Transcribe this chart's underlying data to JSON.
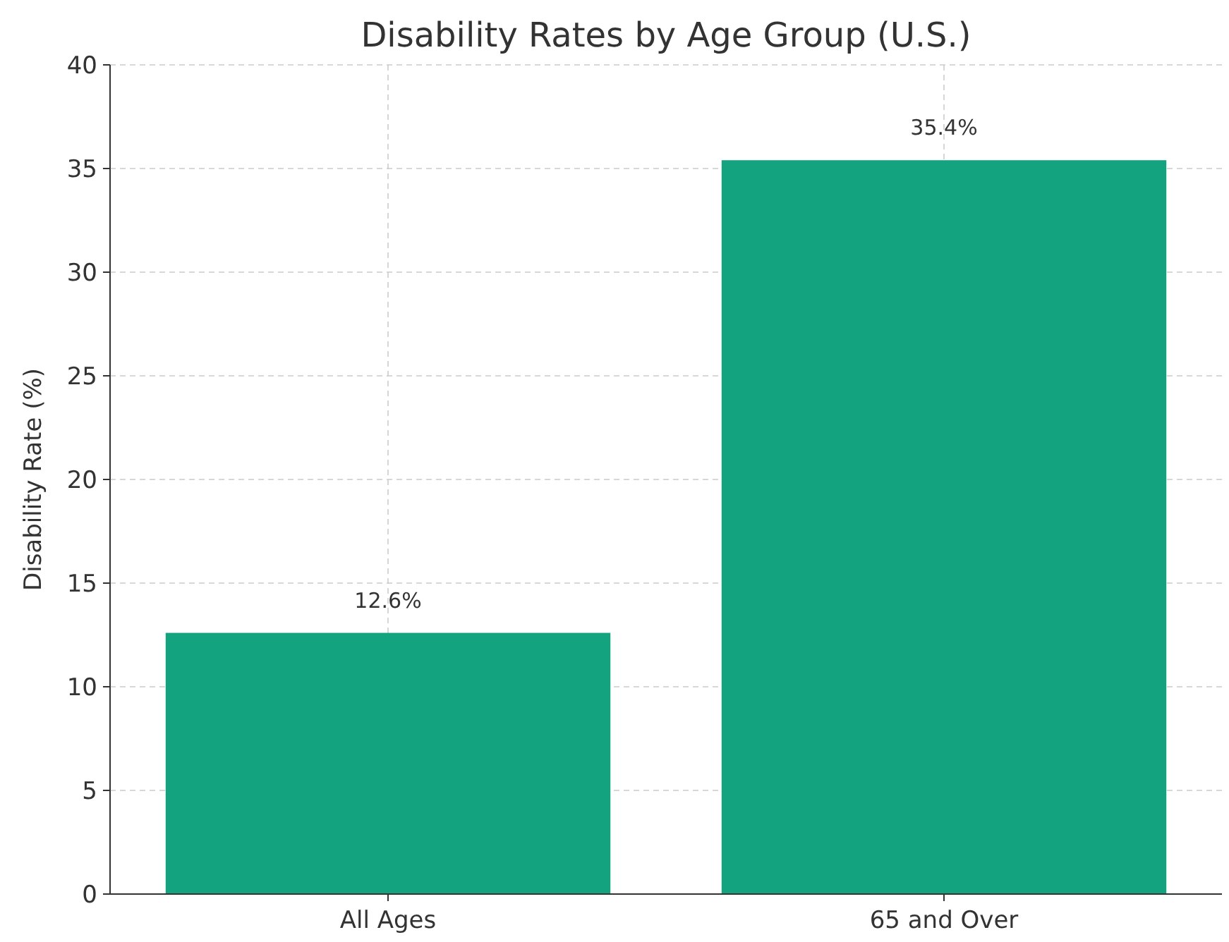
{
  "chart_data": {
    "type": "bar",
    "title": "Disability Rates by Age Group (U.S.)",
    "ylabel": "Disability Rate (%)",
    "categories": [
      "All Ages",
      "65 and Over"
    ],
    "values": [
      12.6,
      35.4
    ],
    "value_labels": [
      "12.6%",
      "35.4%"
    ],
    "color": "#13a37f",
    "ylim": [
      0,
      40
    ],
    "yticks": [
      0,
      5,
      10,
      15,
      20,
      25,
      30,
      35,
      40
    ],
    "grid": true
  }
}
